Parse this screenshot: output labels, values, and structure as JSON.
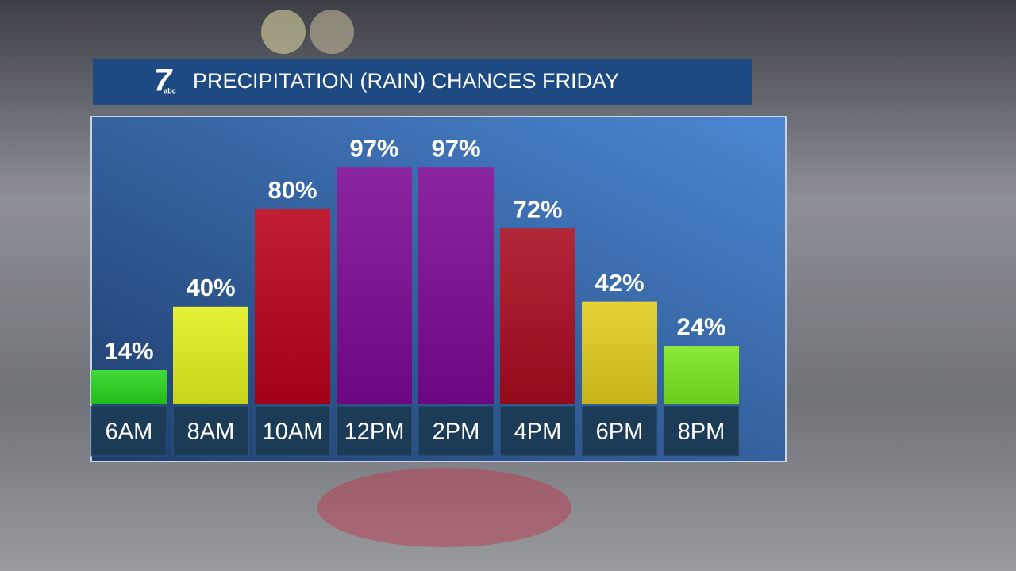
{
  "logo": {
    "number": "7",
    "network": "abc"
  },
  "chart_data": {
    "type": "bar",
    "title": "PRECIPITATION (RAIN) CHANCES FRIDAY",
    "categories": [
      "6AM",
      "8AM",
      "10AM",
      "12PM",
      "2PM",
      "4PM",
      "6PM",
      "8PM"
    ],
    "values": [
      14,
      40,
      80,
      97,
      97,
      72,
      42,
      24
    ],
    "value_labels": [
      "14%",
      "40%",
      "80%",
      "97%",
      "97%",
      "72%",
      "42%",
      "24%"
    ],
    "colors": [
      "#28d41e",
      "#e2ef1c",
      "#b8001a",
      "#7a0892",
      "#7a0892",
      "#a80a1e",
      "#e0cc1c",
      "#7be61e"
    ]
  }
}
